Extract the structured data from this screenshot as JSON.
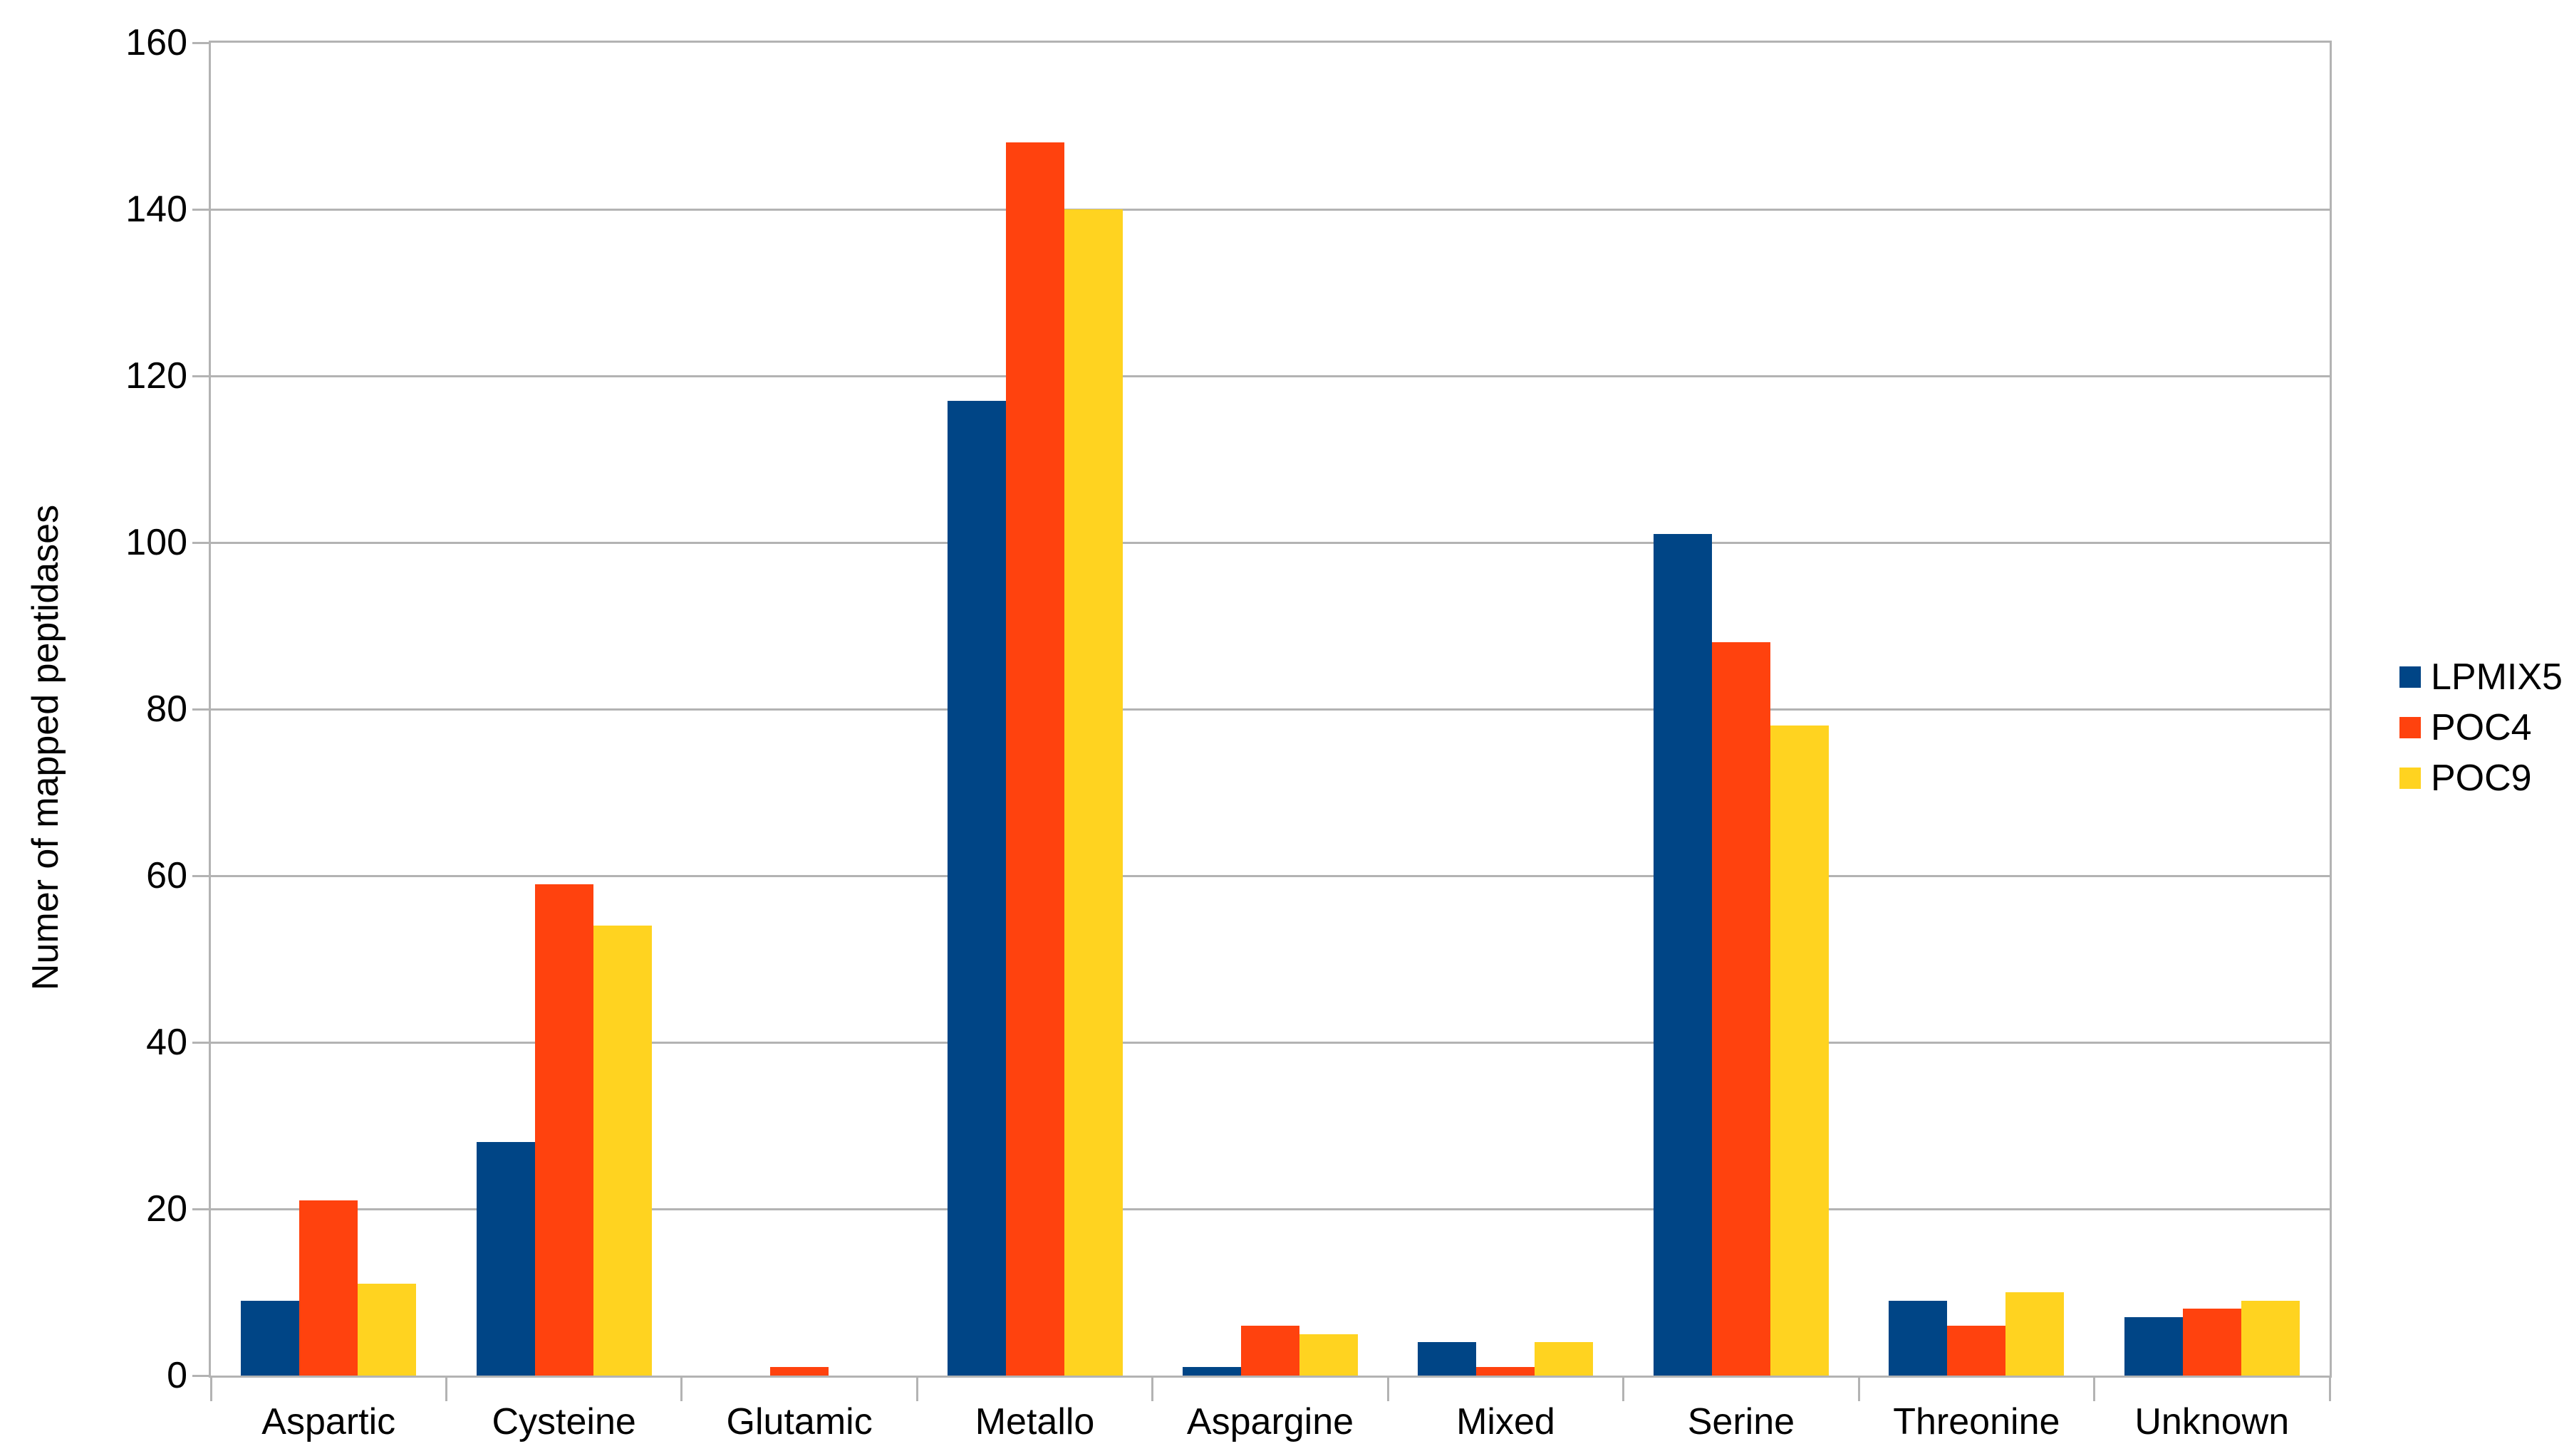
{
  "chart_data": {
    "type": "bar",
    "title": "",
    "xlabel": "",
    "ylabel": "Numer of mapped peptidases",
    "ylim": [
      0,
      160
    ],
    "yticks": [
      0,
      20,
      40,
      60,
      80,
      100,
      120,
      140,
      160
    ],
    "grid": true,
    "legend_position": "right",
    "axis_color": "#b3b3b3",
    "text_color": "#000000",
    "background_color": "#ffffff",
    "categories": [
      "Aspartic",
      "Cysteine",
      "Glutamic",
      "Metallo",
      "Aspargine",
      "Mixed",
      "Serine",
      "Threonine",
      "Unknown"
    ],
    "series": [
      {
        "name": "LPMIX5",
        "color": "#004586",
        "values": [
          9,
          28,
          0,
          117,
          1,
          4,
          101,
          9,
          7
        ]
      },
      {
        "name": "POC4",
        "color": "#FF420E",
        "values": [
          21,
          59,
          1,
          148,
          6,
          1,
          88,
          6,
          8
        ]
      },
      {
        "name": "POC9",
        "color": "#FFD320",
        "values": [
          11,
          54,
          0,
          140,
          5,
          4,
          78,
          10,
          9
        ]
      }
    ]
  }
}
